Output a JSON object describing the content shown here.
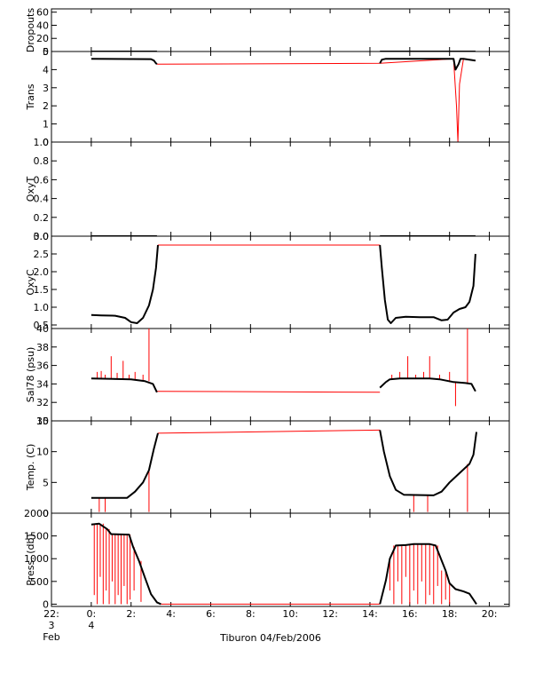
{
  "chart_data": {
    "type": "line",
    "caption": "Tiburon 04/Feb/2006",
    "x_unit": "hours (local time), 3 Feb 22:00 to 4 Feb 21:00",
    "x_ticks": [
      {
        "value": -2,
        "label": "22:",
        "sub": [
          "3",
          "Feb"
        ]
      },
      {
        "value": 0,
        "label": "0:",
        "sub": [
          "4"
        ]
      },
      {
        "value": 2,
        "label": "2:"
      },
      {
        "value": 4,
        "label": "4:"
      },
      {
        "value": 6,
        "label": "6:"
      },
      {
        "value": 8,
        "label": "8:"
      },
      {
        "value": 10,
        "label": "10:"
      },
      {
        "value": 12,
        "label": "12:"
      },
      {
        "value": 14,
        "label": "14:"
      },
      {
        "value": 16,
        "label": "16:"
      },
      {
        "value": 18,
        "label": "18:"
      },
      {
        "value": 20,
        "label": "20:"
      }
    ],
    "xlim": [
      -2,
      21
    ],
    "colors": {
      "processed": "#000000",
      "raw": "#ff0000"
    },
    "panels": [
      {
        "id": "dropouts",
        "ylabel": "Dropouts",
        "ylim": [
          0,
          65
        ],
        "yticks": [
          0,
          20,
          40,
          60
        ],
        "ytick_labels": [
          "0",
          "20",
          "40",
          "60"
        ],
        "series": [
          {
            "color": "processed",
            "x": [
              0.0,
              3.3
            ],
            "y": [
              0,
              0
            ]
          },
          {
            "color": "processed",
            "x": [
              14.5,
              19.3
            ],
            "y": [
              0,
              0
            ]
          },
          {
            "color": "raw",
            "x": [
              0.0,
              3.3,
              14.5,
              19.3
            ],
            "y": [
              0,
              0,
              0,
              0
            ]
          }
        ]
      },
      {
        "id": "trans",
        "ylabel": "Trans",
        "ylim": [
          0,
          5
        ],
        "yticks": [
          0,
          1,
          2,
          3,
          4,
          5
        ],
        "ytick_labels": [
          "0",
          "1",
          "2",
          "3",
          "4",
          "5"
        ],
        "series": [
          {
            "color": "processed",
            "x": [
              0.0,
              3.0,
              3.15,
              3.25,
              3.3
            ],
            "y": [
              4.6,
              4.58,
              4.5,
              4.35,
              4.3
            ]
          },
          {
            "color": "processed",
            "x": [
              14.5,
              14.6,
              14.8,
              18.2,
              18.3,
              18.45,
              18.55,
              18.7,
              19.3
            ],
            "y": [
              4.35,
              4.55,
              4.6,
              4.6,
              4.0,
              4.3,
              4.6,
              4.6,
              4.5
            ]
          },
          {
            "color": "raw",
            "x": [
              3.3,
              14.5,
              18.2,
              18.35,
              18.42,
              18.5,
              18.7,
              19.3
            ],
            "y": [
              4.3,
              4.35,
              4.6,
              2.0,
              0.0,
              3.2,
              4.6,
              4.5
            ]
          }
        ]
      },
      {
        "id": "oxyt",
        "ylabel": "OxyT",
        "ylim": [
          0,
          1
        ],
        "yticks": [
          0,
          0.2,
          0.4,
          0.6,
          0.8,
          1.0
        ],
        "ytick_labels": [
          "0.0",
          "0.2",
          "0.4",
          "0.6",
          "0.8",
          "1.0"
        ],
        "series": [
          {
            "color": "processed",
            "x": [
              0.0,
              3.3
            ],
            "y": [
              0,
              0
            ]
          },
          {
            "color": "processed",
            "x": [
              14.5,
              19.3
            ],
            "y": [
              0,
              0
            ]
          },
          {
            "color": "raw",
            "x": [
              3.3,
              14.5
            ],
            "y": [
              0,
              0
            ]
          }
        ]
      },
      {
        "id": "oxyc",
        "ylabel": "OxyC",
        "ylim": [
          0.4,
          3.0
        ],
        "yticks": [
          0.5,
          1.0,
          1.5,
          2.0,
          2.5,
          3.0
        ],
        "ytick_labels": [
          "0.5",
          "1.0",
          "1.5",
          "2.0",
          "2.5",
          "3.0"
        ],
        "series": [
          {
            "color": "processed",
            "x": [
              0.0,
              0.5,
              1.2,
              1.7,
              2.0,
              2.3,
              2.6,
              2.9,
              3.1,
              3.25,
              3.35
            ],
            "y": [
              0.78,
              0.77,
              0.76,
              0.7,
              0.58,
              0.55,
              0.7,
              1.05,
              1.5,
              2.1,
              2.75
            ]
          },
          {
            "color": "processed",
            "x": [
              14.5,
              14.6,
              14.75,
              14.9,
              15.05,
              15.3,
              15.8,
              16.5,
              17.2,
              17.6,
              17.9,
              18.2,
              18.5,
              18.8,
              19.0,
              19.2,
              19.3
            ],
            "y": [
              2.75,
              2.1,
              1.2,
              0.65,
              0.55,
              0.7,
              0.73,
              0.72,
              0.72,
              0.63,
              0.65,
              0.85,
              0.95,
              1.0,
              1.15,
              1.6,
              2.5
            ]
          },
          {
            "color": "raw",
            "x": [
              3.35,
              14.5
            ],
            "y": [
              2.75,
              2.75
            ]
          }
        ]
      },
      {
        "id": "sal78",
        "ylabel": "Sal78 (psu)",
        "ylim": [
          30,
          40
        ],
        "yticks": [
          30,
          32,
          34,
          36,
          38,
          40
        ],
        "ytick_labels": [
          "30",
          "32",
          "34",
          "36",
          "38",
          "40"
        ],
        "series": [
          {
            "color": "processed",
            "x": [
              0.0,
              2.0,
              2.7,
              3.1,
              3.3
            ],
            "y": [
              34.6,
              34.5,
              34.3,
              34.0,
              33.1
            ]
          },
          {
            "color": "processed",
            "x": [
              14.5,
              14.8,
              15.0,
              15.5,
              17.0,
              17.5,
              18.2,
              18.8,
              19.1,
              19.3
            ],
            "y": [
              33.6,
              34.2,
              34.5,
              34.6,
              34.6,
              34.5,
              34.2,
              34.1,
              34.0,
              33.2
            ]
          },
          {
            "color": "raw",
            "x": [
              3.3,
              14.5
            ],
            "y": [
              33.2,
              33.1
            ]
          }
        ],
        "spikes": [
          {
            "x": 0.3,
            "y": 35.3
          },
          {
            "x": 0.5,
            "y": 35.4
          },
          {
            "x": 0.7,
            "y": 35.0
          },
          {
            "x": 1.0,
            "y": 37.0
          },
          {
            "x": 1.3,
            "y": 35.2
          },
          {
            "x": 1.6,
            "y": 36.5
          },
          {
            "x": 1.9,
            "y": 35.0
          },
          {
            "x": 2.2,
            "y": 35.3
          },
          {
            "x": 2.6,
            "y": 35.0
          },
          {
            "x": 2.9,
            "y": 40.0
          },
          {
            "x": 15.1,
            "y": 35.0
          },
          {
            "x": 15.5,
            "y": 35.3
          },
          {
            "x": 15.9,
            "y": 37.0
          },
          {
            "x": 16.3,
            "y": 35.0
          },
          {
            "x": 16.7,
            "y": 35.3
          },
          {
            "x": 17.0,
            "y": 37.0
          },
          {
            "x": 17.5,
            "y": 35.0
          },
          {
            "x": 18.0,
            "y": 35.3
          },
          {
            "x": 18.3,
            "y": 31.6
          },
          {
            "x": 18.9,
            "y": 40.0
          }
        ]
      },
      {
        "id": "temp",
        "ylabel": "Temp. (C)",
        "ylim": [
          0,
          15
        ],
        "yticks": [
          0,
          5,
          10,
          15
        ],
        "ytick_labels": [
          "0",
          "5",
          "10",
          "15"
        ],
        "series": [
          {
            "color": "processed",
            "x": [
              0.0,
              1.8,
              2.2,
              2.6,
              2.9,
              3.15,
              3.35
            ],
            "y": [
              2.5,
              2.5,
              3.5,
              5.0,
              7.0,
              10.5,
              13.0
            ]
          },
          {
            "color": "processed",
            "x": [
              14.5,
              14.7,
              15.0,
              15.3,
              15.7,
              17.2,
              17.6,
              18.0,
              18.5,
              19.0,
              19.2,
              19.35
            ],
            "y": [
              13.5,
              10.0,
              6.0,
              3.8,
              3.0,
              2.9,
              3.5,
              5.0,
              6.5,
              8.0,
              9.5,
              13.2
            ]
          },
          {
            "color": "raw",
            "x": [
              3.35,
              14.5
            ],
            "y": [
              13.0,
              13.5
            ]
          }
        ],
        "spikes": [
          {
            "x": 0.4,
            "y": 0.2
          },
          {
            "x": 0.7,
            "y": 0.2
          },
          {
            "x": 2.9,
            "y": 0.2
          },
          {
            "x": 16.2,
            "y": 0.2
          },
          {
            "x": 16.9,
            "y": 0.2
          },
          {
            "x": 18.9,
            "y": 0.2
          }
        ]
      },
      {
        "id": "press",
        "ylabel": "Press. (db)",
        "ylim": [
          -50,
          2000
        ],
        "yticks": [
          0,
          500,
          1000,
          1500,
          2000
        ],
        "ytick_labels": [
          "0",
          "500",
          "1000",
          "1500",
          "2000"
        ],
        "series": [
          {
            "color": "processed",
            "x": [
              0.0,
              0.4,
              0.8,
              1.0,
              1.9,
              2.1,
              2.4,
              2.7,
              3.0,
              3.3,
              3.5
            ],
            "y": [
              1750,
              1770,
              1650,
              1540,
              1530,
              1260,
              950,
              580,
              220,
              40,
              0
            ]
          },
          {
            "color": "processed",
            "x": [
              14.5,
              14.8,
              15.0,
              15.3,
              15.8,
              16.2,
              17.0,
              17.3,
              17.8,
              18.0,
              18.3,
              18.7,
              19.0,
              19.2,
              19.35
            ],
            "y": [
              0,
              520,
              1000,
              1290,
              1300,
              1320,
              1320,
              1290,
              740,
              460,
              330,
              280,
              230,
              100,
              0
            ]
          },
          {
            "color": "raw",
            "x": [
              3.5,
              14.5
            ],
            "y": [
              0,
              0
            ]
          }
        ],
        "spikes": [
          {
            "x": 0.15,
            "y": 200
          },
          {
            "x": 0.3,
            "y": 0
          },
          {
            "x": 0.45,
            "y": 600
          },
          {
            "x": 0.6,
            "y": 0
          },
          {
            "x": 0.75,
            "y": 300
          },
          {
            "x": 0.9,
            "y": 0
          },
          {
            "x": 1.05,
            "y": 500
          },
          {
            "x": 1.2,
            "y": 0
          },
          {
            "x": 1.35,
            "y": 200
          },
          {
            "x": 1.5,
            "y": 0
          },
          {
            "x": 1.65,
            "y": 400
          },
          {
            "x": 1.8,
            "y": 0
          },
          {
            "x": 1.95,
            "y": 100
          },
          {
            "x": 2.15,
            "y": 300
          },
          {
            "x": 2.5,
            "y": 50
          },
          {
            "x": 15.0,
            "y": 300
          },
          {
            "x": 15.2,
            "y": 0
          },
          {
            "x": 15.4,
            "y": 500
          },
          {
            "x": 15.6,
            "y": 0
          },
          {
            "x": 15.8,
            "y": 600
          },
          {
            "x": 16.0,
            "y": 0
          },
          {
            "x": 16.2,
            "y": 300
          },
          {
            "x": 16.4,
            "y": 0
          },
          {
            "x": 16.6,
            "y": 500
          },
          {
            "x": 16.8,
            "y": 0
          },
          {
            "x": 17.0,
            "y": 200
          },
          {
            "x": 17.2,
            "y": 0
          },
          {
            "x": 17.4,
            "y": 400
          },
          {
            "x": 17.6,
            "y": 0
          },
          {
            "x": 17.8,
            "y": 100
          },
          {
            "x": 18.0,
            "y": 0
          }
        ]
      }
    ]
  }
}
